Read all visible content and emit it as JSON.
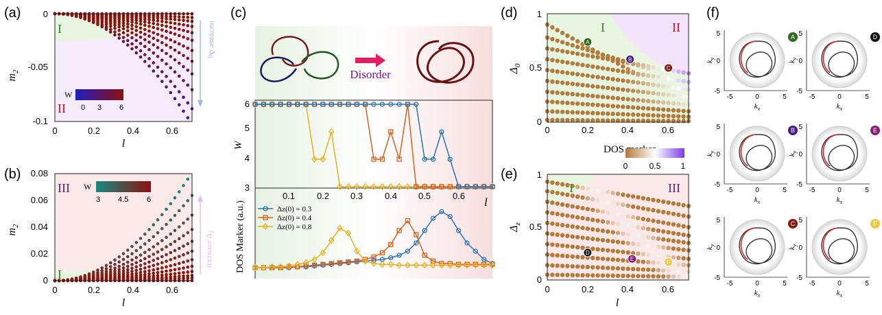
{
  "panels": {
    "a": {
      "letter": "(a)",
      "xlabel": "l",
      "ylabel": "m",
      "ylabel_sub": "2",
      "xticks": [
        "0",
        "0.2",
        "0.4",
        "0.6"
      ],
      "yticks": [
        "0",
        "-0.05",
        "-0.1"
      ],
      "region_I": "I",
      "region_II": "II",
      "arrow_text": "increase Δ",
      "arrow_sub": "0",
      "cbar_title": "W",
      "cbar_ticks": [
        "0",
        "3",
        "6"
      ]
    },
    "b": {
      "letter": "(b)",
      "xlabel": "l",
      "ylabel": "m",
      "ylabel_sub": "2",
      "xticks": [
        "0",
        "0.2",
        "0.4",
        "0.6"
      ],
      "yticks": [
        "0",
        "0.02",
        "0.04",
        "0.06",
        "0.08"
      ],
      "region_I": "I",
      "region_III": "III",
      "arrow_text": "increase Δ",
      "arrow_sub": "z",
      "cbar_title": "W",
      "cbar_ticks": [
        "3",
        "4.5",
        "6"
      ]
    },
    "c": {
      "letter": "(c)",
      "disorder_label": "Disorder",
      "ylabel_top": "W",
      "ylabel_bottom": "DOS Marker (a.u.)",
      "xlabel": "l",
      "xticks": [
        "0.1",
        "0.2",
        "0.3",
        "0.4",
        "0.5",
        "0.6"
      ],
      "yticks_top": [
        "3",
        "4",
        "5",
        "6"
      ]
    },
    "d": {
      "letter": "(d)",
      "ylabel": "Δ",
      "ylabel_sub": "0",
      "xticks": [
        "0",
        "0.2",
        "0.4",
        "0.6"
      ],
      "yticks": [
        "0",
        "0.5",
        "1"
      ],
      "region_I": "I",
      "region_II": "II",
      "cbar_title": "DOS marker",
      "cbar_ticks": [
        "0",
        "0.5",
        "1"
      ]
    },
    "e": {
      "letter": "(e)",
      "ylabel": "Δ",
      "ylabel_sub": "z",
      "xlabel": "l",
      "xticks": [
        "0",
        "0.2",
        "0.4",
        "0.6"
      ],
      "yticks": [
        "0",
        "0.5",
        "1"
      ],
      "region_I": "I",
      "region_III": "III"
    },
    "f": {
      "letter": "(f)",
      "xlabel": "k",
      "xlabel_sub": "x",
      "ylabel": "k",
      "ylabel_sub": "y",
      "ticks": [
        "-5",
        "0",
        "5"
      ],
      "markers": [
        {
          "label": "A",
          "color": "#2e6b1f"
        },
        {
          "label": "D",
          "color": "#111111"
        },
        {
          "label": "B",
          "color": "#4b1a8a"
        },
        {
          "label": "E",
          "color": "#8a1a78"
        },
        {
          "label": "C",
          "color": "#8a1a10"
        },
        {
          "label": "F",
          "color": "#f0c840"
        }
      ]
    }
  },
  "markers_d": [
    {
      "label": "A",
      "color": "#2e6b1f"
    },
    {
      "label": "B",
      "color": "#4b1a8a"
    },
    {
      "label": "C",
      "color": "#8a1a10"
    }
  ],
  "markers_e": [
    {
      "label": "D",
      "color": "#111111"
    },
    {
      "label": "E",
      "color": "#8a1a78"
    },
    {
      "label": "F",
      "color": "#f0c840"
    }
  ],
  "chart_data": [
    {
      "id": "a",
      "type": "scatter",
      "xlim": [
        0,
        0.7
      ],
      "ylim": [
        -0.1,
        0
      ],
      "note_series": "curves m2 = -c*l^2, c increasing with Δ0; color encodes W",
      "curve_coeffs": [
        0.0,
        0.006,
        0.012,
        0.02,
        0.03,
        0.042,
        0.058,
        0.075,
        0.095,
        0.12,
        0.15,
        0.175
      ],
      "colorscale": [
        "#2020c0",
        "#8b1010"
      ],
      "crange": [
        0,
        6
      ]
    },
    {
      "id": "b",
      "type": "scatter",
      "xlim": [
        0,
        0.7
      ],
      "ylim": [
        0,
        0.08
      ],
      "curve_coeffs": [
        0.0,
        0.004,
        0.008,
        0.014,
        0.022,
        0.032,
        0.045,
        0.06,
        0.078,
        0.1,
        0.13,
        0.165
      ],
      "colorscale": [
        "#1a8a80",
        "#8b1010"
      ],
      "crange": [
        3,
        6
      ]
    },
    {
      "id": "c-top",
      "type": "line",
      "x": [
        0.0,
        0.025,
        0.05,
        0.075,
        0.1,
        0.125,
        0.15,
        0.175,
        0.2,
        0.225,
        0.25,
        0.275,
        0.3,
        0.325,
        0.35,
        0.375,
        0.4,
        0.425,
        0.45,
        0.475,
        0.5,
        0.525,
        0.55,
        0.575,
        0.6,
        0.625,
        0.65,
        0.675,
        0.7
      ],
      "series": [
        {
          "name": "Δz(0) = 0.3",
          "color": "#2a74b8",
          "marker": "circle",
          "values": [
            6,
            6,
            6,
            6,
            6,
            6,
            6,
            6,
            6,
            6,
            6,
            6,
            6,
            6,
            6,
            6,
            6,
            6,
            6,
            6,
            4,
            4,
            5,
            4,
            3,
            3,
            3,
            3,
            3
          ]
        },
        {
          "name": "Δz(0) = 0.4",
          "color": "#d8611e",
          "marker": "square",
          "values": [
            6,
            6,
            6,
            6,
            6,
            6,
            6,
            6,
            6,
            6,
            6,
            6,
            6,
            6,
            4,
            4,
            5,
            4,
            6,
            3,
            3,
            3,
            3,
            3,
            3,
            3,
            3,
            3,
            3
          ]
        },
        {
          "name": "Δz(0) = 0.8",
          "color": "#e8b020",
          "marker": "diamond",
          "values": [
            6,
            6,
            6,
            6,
            6,
            6,
            6,
            4,
            4,
            5,
            3,
            3,
            3,
            3,
            3,
            3,
            3,
            3,
            3,
            3,
            3,
            3,
            3,
            3,
            3,
            3,
            3,
            3,
            3
          ]
        }
      ],
      "ylim": [
        3,
        6
      ],
      "xlim": [
        0,
        0.7
      ]
    },
    {
      "id": "c-bottom",
      "type": "line",
      "x": [
        0.0,
        0.025,
        0.05,
        0.075,
        0.1,
        0.125,
        0.15,
        0.175,
        0.2,
        0.225,
        0.25,
        0.275,
        0.3,
        0.325,
        0.35,
        0.375,
        0.4,
        0.425,
        0.45,
        0.475,
        0.5,
        0.525,
        0.55,
        0.575,
        0.6,
        0.625,
        0.65,
        0.675,
        0.7
      ],
      "series": [
        {
          "name": "Δz(0) = 0.3",
          "color": "#2a74b8",
          "marker": "circle",
          "values": [
            0,
            0,
            0,
            0,
            0,
            0.01,
            0.01,
            0.02,
            0.03,
            0.04,
            0.05,
            0.06,
            0.07,
            0.08,
            0.09,
            0.1,
            0.12,
            0.15,
            0.2,
            0.3,
            0.45,
            0.6,
            0.68,
            0.62,
            0.45,
            0.3,
            0.2,
            0.1,
            0.05
          ]
        },
        {
          "name": "Δz(0) = 0.4",
          "color": "#d8611e",
          "marker": "square",
          "values": [
            0,
            0,
            0,
            0,
            0.01,
            0.01,
            0.02,
            0.03,
            0.04,
            0.05,
            0.06,
            0.07,
            0.08,
            0.1,
            0.13,
            0.18,
            0.28,
            0.45,
            0.57,
            0.4,
            0.15,
            0.08,
            0.05,
            0.05,
            0.04,
            0.04,
            0.04,
            0.04,
            0.04
          ]
        },
        {
          "name": "Δz(0) = 0.8",
          "color": "#e8b020",
          "marker": "diamond",
          "values": [
            0,
            0,
            0.01,
            0.01,
            0.02,
            0.04,
            0.06,
            0.1,
            0.18,
            0.33,
            0.48,
            0.42,
            0.2,
            0.08,
            0.05,
            0.04,
            0.04,
            0.03,
            0.03,
            0.03,
            0.03,
            0.03,
            0.03,
            0.03,
            0.03,
            0.03,
            0.03,
            0.03,
            0.03
          ]
        }
      ],
      "ylim": [
        0,
        0.75
      ],
      "xlim": [
        0,
        0.7
      ]
    },
    {
      "id": "d",
      "type": "scatter",
      "xlim": [
        0,
        0.7
      ],
      "ylim": [
        0,
        1
      ],
      "rows_start": [
        0.9,
        0.78,
        0.68,
        0.58,
        0.48,
        0.38,
        0.28,
        0.19,
        0.1,
        0.02
      ],
      "rows_end": [
        0.18,
        0.38,
        0.45,
        0.37,
        0.3,
        0.23,
        0.16,
        0.1,
        0.05,
        0.01
      ],
      "colorscale": [
        "#b37a3a",
        "#ffffff",
        "#7d3be8"
      ],
      "crange": [
        0,
        1
      ]
    },
    {
      "id": "e",
      "type": "scatter",
      "xlim": [
        0,
        0.7
      ],
      "ylim": [
        0,
        1
      ],
      "rows_start": [
        0.93,
        0.84,
        0.74,
        0.64,
        0.54,
        0.44,
        0.34,
        0.24,
        0.14,
        0.05
      ],
      "rows_end": [
        0.7,
        0.6,
        0.5,
        0.42,
        0.35,
        0.28,
        0.2,
        0.14,
        0.08,
        0.03
      ]
    }
  ]
}
